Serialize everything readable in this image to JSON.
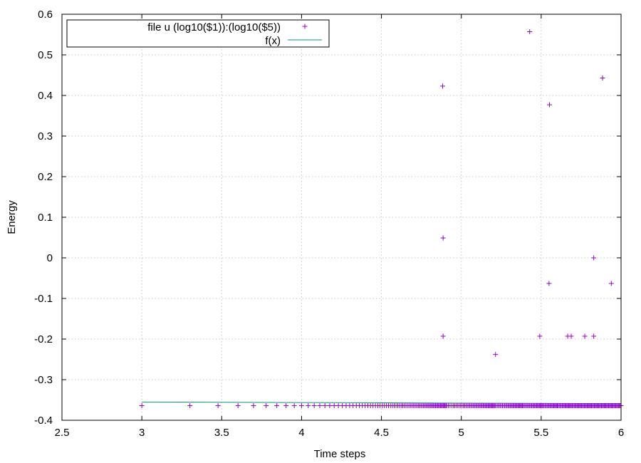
{
  "chart_data": {
    "type": "scatter",
    "xlabel": "Time steps",
    "ylabel": "Energy",
    "xlim": [
      2.5,
      6
    ],
    "ylim": [
      -0.4,
      0.6
    ],
    "xticks": [
      "2.5",
      "3",
      "3.5",
      "4",
      "4.5",
      "5",
      "5.5",
      "6"
    ],
    "yticks": [
      "-0.4",
      "-0.3",
      "-0.2",
      "-0.1",
      "0",
      "0.1",
      "0.2",
      "0.3",
      "0.4",
      "0.5",
      "0.6"
    ],
    "grid": true,
    "legend_position": "top-left",
    "series": [
      {
        "name": "file u (log10($1)):(log10($5))",
        "kind": "scatter",
        "marker": "+",
        "color": "#9400d3",
        "baseline": {
          "y": -0.364,
          "x_values_note": "log10 of integers 1000..1000000",
          "x_start": 3.0,
          "x_end": 6.0
        },
        "points": [
          {
            "x": 4.883,
            "y": 0.423
          },
          {
            "x": 4.886,
            "y": 0.049
          },
          {
            "x": 4.886,
            "y": -0.193
          },
          {
            "x": 5.214,
            "y": -0.238
          },
          {
            "x": 5.428,
            "y": 0.557
          },
          {
            "x": 5.491,
            "y": -0.193
          },
          {
            "x": 5.549,
            "y": -0.063
          },
          {
            "x": 5.552,
            "y": 0.377
          },
          {
            "x": 5.666,
            "y": -0.193
          },
          {
            "x": 5.688,
            "y": -0.193
          },
          {
            "x": 5.773,
            "y": -0.193
          },
          {
            "x": 5.829,
            "y": 0.0
          },
          {
            "x": 5.829,
            "y": -0.193
          },
          {
            "x": 5.884,
            "y": 0.443
          },
          {
            "x": 5.939,
            "y": -0.063
          }
        ]
      },
      {
        "name": "f(x)",
        "kind": "line",
        "color": "#009e73",
        "x": [
          3.0,
          6.0
        ],
        "y": [
          -0.355,
          -0.359
        ]
      }
    ]
  }
}
